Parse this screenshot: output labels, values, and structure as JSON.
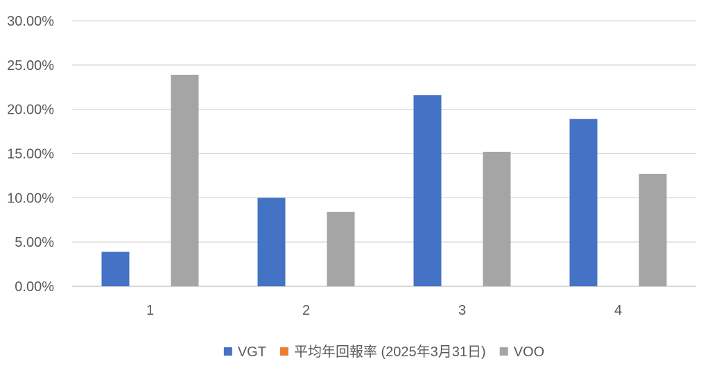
{
  "chart_data": {
    "type": "bar",
    "categories": [
      "1",
      "2",
      "3",
      "4"
    ],
    "series": [
      {
        "name": "VGT",
        "color": "#4472c4",
        "values": [
          3.9,
          10.0,
          21.6,
          18.9
        ]
      },
      {
        "name": "平均年回報率 (2025年3月31日)",
        "color": "#ed7d31",
        "values": [
          null,
          null,
          null,
          null
        ]
      },
      {
        "name": "VOO",
        "color": "#a5a5a5",
        "values": [
          23.9,
          8.4,
          15.2,
          12.7
        ]
      }
    ],
    "y_ticks": [
      "0.00%",
      "5.00%",
      "10.00%",
      "15.00%",
      "20.00%",
      "25.00%",
      "30.00%"
    ],
    "ylim": [
      0,
      30
    ],
    "y_unit": "%",
    "grid": true,
    "legend_position": "bottom",
    "title": "",
    "xlabel": "",
    "ylabel": ""
  }
}
